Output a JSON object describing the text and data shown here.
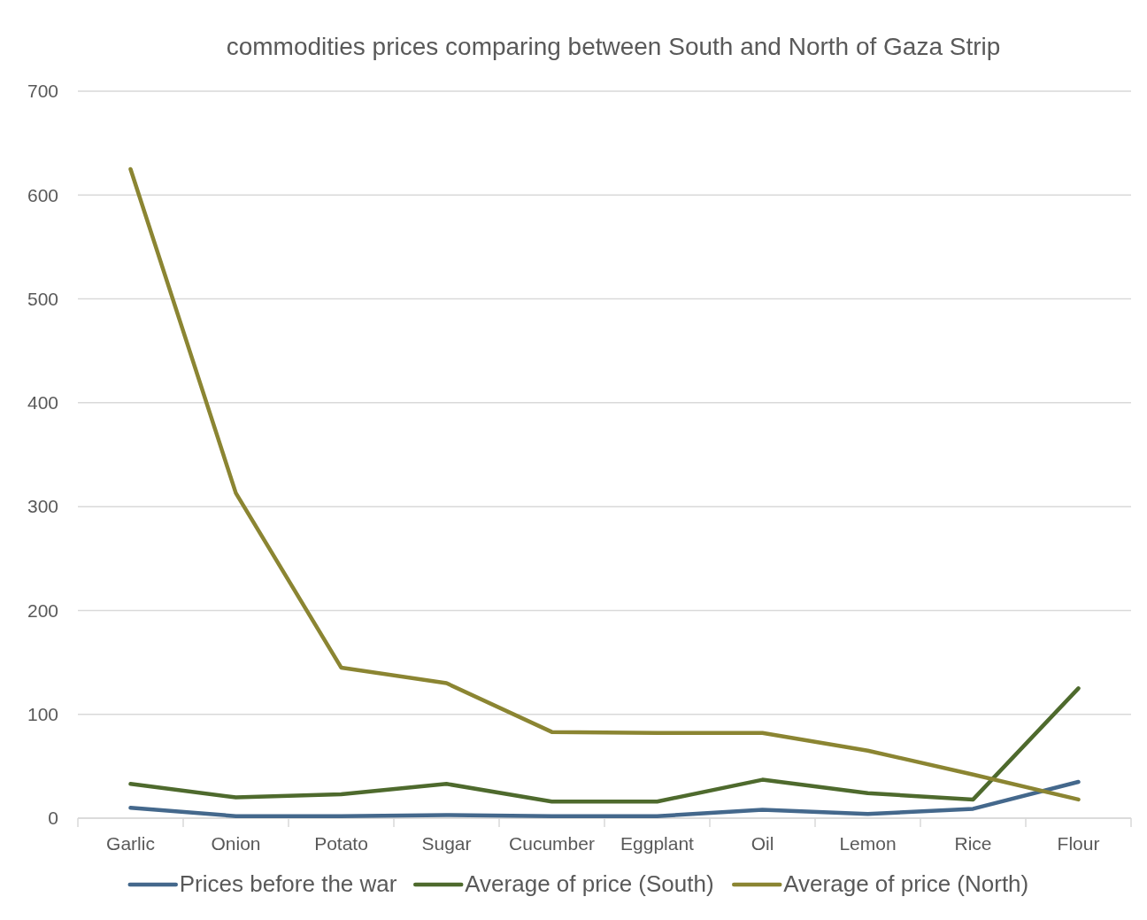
{
  "chart_data": {
    "type": "line",
    "title": "commodities prices comparing between South and North of Gaza Strip",
    "categories": [
      "Garlic",
      "Onion",
      "Potato",
      "Sugar",
      "Cucumber",
      "Eggplant",
      "Oil",
      "Lemon",
      "Rice",
      "Flour"
    ],
    "series": [
      {
        "name": "Prices before the war",
        "color": "#44688c",
        "values": [
          10,
          2,
          2,
          3,
          2,
          2,
          8,
          4,
          9,
          35
        ]
      },
      {
        "name": "Average of price (South)",
        "color": "#4e6a2d",
        "values": [
          33,
          20,
          23,
          33,
          16,
          16,
          37,
          24,
          18,
          125
        ]
      },
      {
        "name": "Average of price (North)",
        "color": "#8b8532",
        "values": [
          625,
          313,
          145,
          130,
          83,
          82,
          82,
          65,
          42,
          18
        ]
      }
    ],
    "ylim": [
      0,
      700
    ],
    "yticks": [
      0,
      100,
      200,
      300,
      400,
      500,
      600,
      700
    ],
    "grid": "y",
    "legend": "bottom",
    "marker": "none",
    "line_style": "solid"
  }
}
